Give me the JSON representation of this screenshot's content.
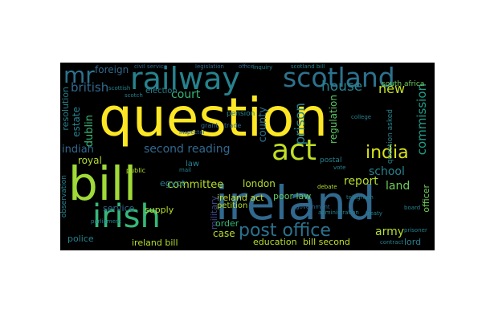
{
  "wordcloud": {
    "background": "#000000",
    "colormap": [
      "#fde725",
      "#b5de2b",
      "#6ece58",
      "#35b779",
      "#1f9e89",
      "#26828e",
      "#31688e",
      "#3e4989",
      "#482878",
      "#440154"
    ],
    "words": [
      {
        "text": "question",
        "color": "#fde725"
      },
      {
        "text": "ireland",
        "color": "#31688e"
      },
      {
        "text": "bill",
        "color": "#a0da39"
      },
      {
        "text": "irish",
        "color": "#35b779"
      },
      {
        "text": "act",
        "color": "#c2df23"
      },
      {
        "text": "railway",
        "color": "#26828e"
      },
      {
        "text": "scotland",
        "color": "#2c728e"
      },
      {
        "text": "mr",
        "color": "#2c728e"
      },
      {
        "text": "india",
        "color": "#d8e219"
      },
      {
        "text": "post office",
        "color": "#2c728e"
      },
      {
        "text": "british",
        "color": "#31688e"
      },
      {
        "text": "foreign",
        "color": "#31688e"
      },
      {
        "text": "court",
        "color": "#35b779"
      },
      {
        "text": "prison",
        "color": "#26828e"
      },
      {
        "text": "county",
        "color": "#2c728e"
      },
      {
        "text": "commission",
        "color": "#1f9e89"
      },
      {
        "text": "house",
        "color": "#26828e"
      },
      {
        "text": "new",
        "color": "#c2df23"
      },
      {
        "text": "second reading",
        "color": "#31688e"
      },
      {
        "text": "indian",
        "color": "#31688e"
      },
      {
        "text": "dublin",
        "color": "#35b779"
      },
      {
        "text": "estate",
        "color": "#26828e"
      },
      {
        "text": "resolution",
        "color": "#26828e"
      },
      {
        "text": "regulation",
        "color": "#5ec962"
      },
      {
        "text": "school",
        "color": "#26828e"
      },
      {
        "text": "report",
        "color": "#b5de2b"
      },
      {
        "text": "land",
        "color": "#6ece58"
      },
      {
        "text": "royal",
        "color": "#b5de2b"
      },
      {
        "text": "committee",
        "color": "#b5de2b"
      },
      {
        "text": "ireland act",
        "color": "#c2df23"
      },
      {
        "text": "poor law",
        "color": "#5ec962"
      },
      {
        "text": "london",
        "color": "#b5de2b"
      },
      {
        "text": "egypt",
        "color": "#26828e"
      },
      {
        "text": "service",
        "color": "#31688e"
      },
      {
        "text": "supply",
        "color": "#b5de2b"
      },
      {
        "text": "military",
        "color": "#3e4989"
      },
      {
        "text": "order",
        "color": "#35b779"
      },
      {
        "text": "petition",
        "color": "#b5de2b"
      },
      {
        "text": "case",
        "color": "#b5de2b"
      },
      {
        "text": "police",
        "color": "#26828e"
      },
      {
        "text": "ireland bill",
        "color": "#b5de2b"
      },
      {
        "text": "education",
        "color": "#b5de2b"
      },
      {
        "text": "bill second",
        "color": "#c2df23"
      },
      {
        "text": "army",
        "color": "#b5de2b"
      },
      {
        "text": "lord",
        "color": "#26828e"
      },
      {
        "text": "officer",
        "color": "#6ece58"
      },
      {
        "text": "observation",
        "color": "#26828e"
      },
      {
        "text": "question asked",
        "color": "#26828e"
      },
      {
        "text": "election",
        "color": "#26828e"
      },
      {
        "text": "pension",
        "color": "#26828e"
      },
      {
        "text": "postal",
        "color": "#26828e"
      },
      {
        "text": "south africa",
        "color": "#6ece58"
      },
      {
        "text": "law",
        "color": "#26828e"
      },
      {
        "text": "trade",
        "color": "#31688e"
      },
      {
        "text": "grant",
        "color": "#31688e"
      },
      {
        "text": "public",
        "color": "#b5de2b"
      },
      {
        "text": "government",
        "color": "#31688e"
      },
      {
        "text": "parliament",
        "color": "#26828e"
      },
      {
        "text": "civil service",
        "color": "#31688e"
      },
      {
        "text": "legislation",
        "color": "#31688e"
      },
      {
        "text": "office",
        "color": "#31688e"
      },
      {
        "text": "scottish",
        "color": "#26828e"
      },
      {
        "text": "scotch",
        "color": "#26828e"
      },
      {
        "text": "debate",
        "color": "#b5de2b"
      },
      {
        "text": "inquiry",
        "color": "#26828e"
      },
      {
        "text": "scotland bill",
        "color": "#26828e"
      },
      {
        "text": "administration",
        "color": "#26828e"
      },
      {
        "text": "prisoner",
        "color": "#26828e"
      },
      {
        "text": "contract",
        "color": "#26828e"
      },
      {
        "text": "telegraph",
        "color": "#26828e"
      },
      {
        "text": "college",
        "color": "#26828e"
      },
      {
        "text": "inspector",
        "color": "#31688e"
      },
      {
        "text": "board",
        "color": "#26828e"
      },
      {
        "text": "vote",
        "color": "#26828e"
      },
      {
        "text": "treaty",
        "color": "#26828e"
      },
      {
        "text": "mail",
        "color": "#26828e"
      }
    ]
  }
}
